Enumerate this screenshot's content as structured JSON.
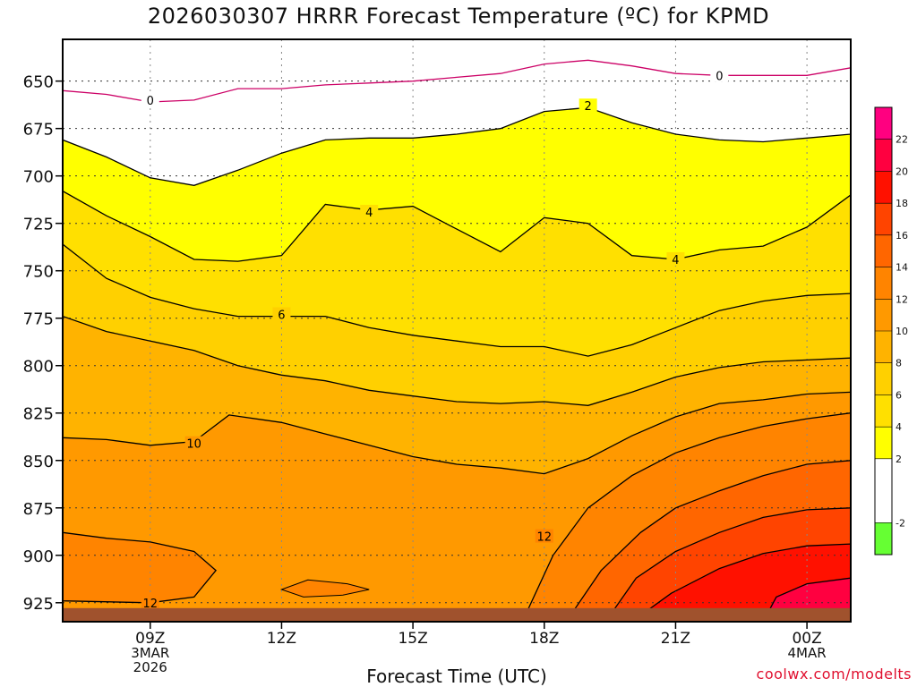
{
  "title": "2026030307 HRRR Forecast Temperature (ºC) for KPMD",
  "xlabel": "Forecast Time (UTC)",
  "credit": "coolwx.com/modelts",
  "colors": {
    "terrain": "#a0522d",
    "below0": "#ffffff",
    "below_m2": "#66ff33",
    "bands": [
      "#ffffff",
      "#ffff00",
      "#ffe000",
      "#ffd000",
      "#ffb300",
      "#ff9900",
      "#ff8400",
      "#ff6600",
      "#ff4400",
      "#ff1100",
      "#ff0040",
      "#ff0080"
    ],
    "freezing_line": "#cc0066"
  },
  "chart_data": {
    "type": "heatmap",
    "title": "2026030307 HRRR Forecast Temperature (ºC) for KPMD",
    "xlabel": "Forecast Time (UTC)",
    "ylabel": "",
    "x_hours": [
      7,
      25
    ],
    "xticks": [
      {
        "hour": 9,
        "lines": [
          "09Z",
          "3MAR",
          "2026"
        ]
      },
      {
        "hour": 12,
        "lines": [
          "12Z"
        ]
      },
      {
        "hour": 15,
        "lines": [
          "15Z"
        ]
      },
      {
        "hour": 18,
        "lines": [
          "18Z"
        ]
      },
      {
        "hour": 21,
        "lines": [
          "21Z"
        ]
      },
      {
        "hour": 24,
        "lines": [
          "00Z",
          "4MAR"
        ]
      }
    ],
    "ylim_hpa": [
      628,
      935
    ],
    "yticks": [
      "650",
      "675",
      "700",
      "725",
      "750",
      "775",
      "800",
      "825",
      "850",
      "875",
      "900",
      "925"
    ],
    "colorbar": {
      "min": -4,
      "max": 24,
      "ticks": [
        "-2",
        "2",
        "4",
        "6",
        "8",
        "10",
        "12",
        "14",
        "16",
        "18",
        "20",
        "22"
      ],
      "stops": [
        {
          "from": -4,
          "to": -2,
          "color": "#66ff33"
        },
        {
          "from": -2,
          "to": 0,
          "color": "#ffffff"
        },
        {
          "from": 0,
          "to": 2,
          "color": "#ffffff"
        },
        {
          "from": 2,
          "to": 4,
          "color": "#ffff00"
        },
        {
          "from": 4,
          "to": 6,
          "color": "#ffe000"
        },
        {
          "from": 6,
          "to": 8,
          "color": "#ffd000"
        },
        {
          "from": 8,
          "to": 10,
          "color": "#ffb300"
        },
        {
          "from": 10,
          "to": 12,
          "color": "#ff9900"
        },
        {
          "from": 12,
          "to": 14,
          "color": "#ff8400"
        },
        {
          "from": 14,
          "to": 16,
          "color": "#ff6600"
        },
        {
          "from": 16,
          "to": 18,
          "color": "#ff4400"
        },
        {
          "from": 18,
          "to": 20,
          "color": "#ff1100"
        },
        {
          "from": 20,
          "to": 22,
          "color": "#ff0040"
        },
        {
          "from": 22,
          "to": 24,
          "color": "#ff0080"
        }
      ]
    },
    "isotherms": [
      {
        "level": 0,
        "label": "0",
        "labels_at": [
          [
            9,
            660
          ],
          [
            22.0,
            647
          ]
        ],
        "points": [
          [
            7,
            655
          ],
          [
            8,
            657
          ],
          [
            9,
            661
          ],
          [
            10,
            660
          ],
          [
            11,
            654
          ],
          [
            12,
            654
          ],
          [
            13,
            652
          ],
          [
            14,
            651
          ],
          [
            15,
            650
          ],
          [
            16,
            648
          ],
          [
            17,
            646
          ],
          [
            18,
            641
          ],
          [
            19,
            639
          ],
          [
            20,
            642
          ],
          [
            21,
            646
          ],
          [
            22,
            647
          ],
          [
            23,
            647
          ],
          [
            24,
            647
          ],
          [
            25,
            643
          ]
        ]
      },
      {
        "level": 2,
        "label": "2",
        "labels_at": [
          [
            19,
            663
          ]
        ],
        "points": [
          [
            7,
            681
          ],
          [
            8,
            690
          ],
          [
            9,
            701
          ],
          [
            10,
            705
          ],
          [
            11,
            697
          ],
          [
            12,
            688
          ],
          [
            13,
            681
          ],
          [
            14,
            680
          ],
          [
            15,
            680
          ],
          [
            16,
            678
          ],
          [
            17,
            675
          ],
          [
            18,
            666
          ],
          [
            19,
            664
          ],
          [
            20,
            672
          ],
          [
            21,
            678
          ],
          [
            22,
            681
          ],
          [
            23,
            682
          ],
          [
            24,
            680
          ],
          [
            25,
            678
          ]
        ]
      },
      {
        "level": 4,
        "label": "4",
        "labels_at": [
          [
            14,
            719
          ],
          [
            21.0,
            744
          ]
        ],
        "points": [
          [
            7,
            708
          ],
          [
            8,
            721
          ],
          [
            9,
            732
          ],
          [
            10,
            744
          ],
          [
            11,
            745
          ],
          [
            12,
            742
          ],
          [
            13,
            715
          ],
          [
            14,
            718
          ],
          [
            15,
            716
          ],
          [
            16,
            728
          ],
          [
            17,
            740
          ],
          [
            18,
            722
          ],
          [
            19,
            725
          ],
          [
            20,
            742
          ],
          [
            21,
            744
          ],
          [
            22,
            739
          ],
          [
            23,
            737
          ],
          [
            24,
            727
          ],
          [
            25,
            710
          ]
        ]
      },
      {
        "level": 6,
        "label": "6",
        "labels_at": [
          [
            12.0,
            773
          ]
        ],
        "points": [
          [
            7,
            736
          ],
          [
            8,
            754
          ],
          [
            9,
            764
          ],
          [
            10,
            770
          ],
          [
            11,
            774
          ],
          [
            12,
            774
          ],
          [
            13,
            774
          ],
          [
            14,
            780
          ],
          [
            15,
            784
          ],
          [
            16,
            787
          ],
          [
            17,
            790
          ],
          [
            18,
            790
          ],
          [
            19,
            795
          ],
          [
            20,
            789
          ],
          [
            21,
            780
          ],
          [
            22,
            771
          ],
          [
            23,
            766
          ],
          [
            24,
            763
          ],
          [
            25,
            762
          ]
        ]
      },
      {
        "level": 8,
        "label": "",
        "labels_at": [],
        "points": [
          [
            7,
            774
          ],
          [
            8,
            782
          ],
          [
            9,
            787
          ],
          [
            10,
            792
          ],
          [
            11,
            800
          ],
          [
            12,
            805
          ],
          [
            13,
            808
          ],
          [
            14,
            813
          ],
          [
            15,
            816
          ],
          [
            16,
            819
          ],
          [
            17,
            820
          ],
          [
            18,
            819
          ],
          [
            19,
            821
          ],
          [
            20,
            814
          ],
          [
            21,
            806
          ],
          [
            22,
            801
          ],
          [
            23,
            798
          ],
          [
            24,
            797
          ],
          [
            25,
            796
          ]
        ]
      },
      {
        "level": 10,
        "label": "10",
        "labels_at": [
          [
            10.0,
            841
          ]
        ],
        "points": [
          [
            7,
            838
          ],
          [
            8,
            839
          ],
          [
            9,
            842
          ],
          [
            10,
            840
          ],
          [
            10.8,
            826
          ],
          [
            12,
            830
          ],
          [
            13,
            836
          ],
          [
            14,
            842
          ],
          [
            15,
            848
          ],
          [
            16,
            852
          ],
          [
            17,
            854
          ],
          [
            18,
            857
          ],
          [
            19,
            849
          ],
          [
            20,
            837
          ],
          [
            21,
            827
          ],
          [
            22,
            820
          ],
          [
            23,
            818
          ],
          [
            24,
            815
          ],
          [
            25,
            814
          ]
        ]
      },
      {
        "level": 12,
        "label": "12",
        "labels_at": [
          [
            18.0,
            890
          ],
          [
            9.0,
            925
          ]
        ],
        "points": [
          [
            7,
            888
          ],
          [
            8,
            891
          ],
          [
            9,
            893
          ],
          [
            10,
            898
          ],
          [
            10.5,
            908
          ],
          [
            10,
            922
          ],
          [
            9,
            925
          ],
          [
            7,
            924
          ]
        ]
      }
    ],
    "terrain_top_hpa": 925
  }
}
